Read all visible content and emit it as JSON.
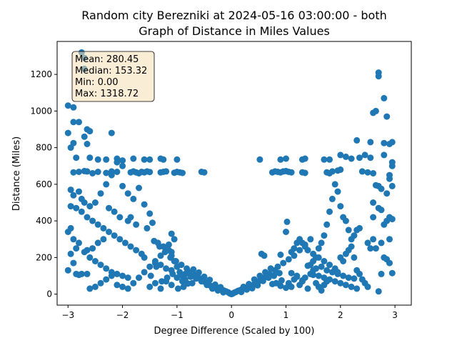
{
  "chart_data": {
    "type": "scatter",
    "title": "Random city Berezniki at 2024-05-16 03:00:00  - both",
    "subtitle": "Graph of Distance in Miles Values",
    "xlabel": "Degree Difference (Scaled by 100)",
    "ylabel": "Distance (Miles)",
    "xlim": [
      -3.2,
      3.3
    ],
    "ylim": [
      -60,
      1380
    ],
    "xticks": [
      -3,
      -2,
      -1,
      0,
      1,
      2,
      3
    ],
    "yticks": [
      0,
      200,
      400,
      600,
      800,
      1000,
      1200
    ],
    "grid": false,
    "marker_color": "#1f77b4",
    "stats_box": {
      "lines": [
        "Mean: 280.45",
        "Median: 153.32",
        "Min: 0.00",
        "Max: 1318.72"
      ],
      "placement": "top-left",
      "facecolor": "#f5deb3"
    },
    "points": [
      [
        0.0,
        0
      ],
      [
        0.02,
        3
      ],
      [
        -0.03,
        4
      ],
      [
        0.05,
        8
      ],
      [
        -0.06,
        10
      ],
      [
        0.08,
        12
      ],
      [
        -0.1,
        15
      ],
      [
        0.12,
        18
      ],
      [
        -0.14,
        20
      ],
      [
        0.16,
        22
      ],
      [
        -0.18,
        25
      ],
      [
        0.2,
        28
      ],
      [
        -0.22,
        30
      ],
      [
        0.25,
        32
      ],
      [
        -0.27,
        35
      ],
      [
        0.3,
        38
      ],
      [
        -0.32,
        40
      ],
      [
        0.35,
        42
      ],
      [
        -0.38,
        45
      ],
      [
        0.4,
        50
      ],
      [
        -0.42,
        55
      ],
      [
        0.45,
        60
      ],
      [
        -0.48,
        65
      ],
      [
        0.5,
        70
      ],
      [
        -0.52,
        75
      ],
      [
        0.55,
        80
      ],
      [
        -0.58,
        85
      ],
      [
        0.6,
        90
      ],
      [
        -0.62,
        95
      ],
      [
        0.65,
        100
      ],
      [
        -0.68,
        105
      ],
      [
        0.7,
        110
      ],
      [
        -0.72,
        60
      ],
      [
        0.75,
        55
      ],
      [
        -0.78,
        120
      ],
      [
        0.8,
        130
      ],
      [
        -0.82,
        140
      ],
      [
        0.85,
        150
      ],
      [
        -0.88,
        40
      ],
      [
        0.9,
        45
      ],
      [
        -0.92,
        160
      ],
      [
        0.95,
        170
      ],
      [
        -0.98,
        30
      ],
      [
        1.0,
        35
      ],
      [
        -1.02,
        180
      ],
      [
        1.05,
        190
      ],
      [
        -1.08,
        110
      ],
      [
        1.1,
        115
      ],
      [
        -1.12,
        200
      ],
      [
        1.15,
        210
      ],
      [
        -1.18,
        90
      ],
      [
        1.2,
        95
      ],
      [
        -1.22,
        230
      ],
      [
        1.25,
        240
      ],
      [
        -1.28,
        70
      ],
      [
        1.3,
        75
      ],
      [
        -1.32,
        260
      ],
      [
        1.35,
        270
      ],
      [
        -1.38,
        150
      ],
      [
        1.4,
        155
      ],
      [
        -1.42,
        290
      ],
      [
        1.45,
        300
      ],
      [
        -1.48,
        100
      ],
      [
        1.5,
        105
      ],
      [
        -0.15,
        10
      ],
      [
        0.18,
        12
      ],
      [
        -0.25,
        20
      ],
      [
        0.28,
        25
      ],
      [
        -0.35,
        30
      ],
      [
        0.38,
        32
      ],
      [
        -0.45,
        50
      ],
      [
        0.48,
        48
      ],
      [
        -0.55,
        70
      ],
      [
        0.58,
        72
      ],
      [
        -0.65,
        85
      ],
      [
        0.68,
        90
      ],
      [
        -0.75,
        95
      ],
      [
        0.78,
        100
      ],
      [
        -0.85,
        110
      ],
      [
        0.88,
        115
      ],
      [
        0.22,
        40
      ],
      [
        -0.2,
        38
      ],
      [
        0.32,
        55
      ],
      [
        -0.3,
        52
      ],
      [
        0.42,
        80
      ],
      [
        -0.4,
        78
      ],
      [
        0.52,
        100
      ],
      [
        -0.5,
        95
      ],
      [
        0.62,
        120
      ],
      [
        -0.6,
        118
      ],
      [
        0.72,
        140
      ],
      [
        -0.7,
        135
      ],
      [
        0.82,
        60
      ],
      [
        -0.8,
        58
      ],
      [
        0.92,
        75
      ],
      [
        -0.9,
        72
      ],
      [
        0.55,
        220
      ],
      [
        0.6,
        210
      ],
      [
        0.9,
        215
      ],
      [
        1.0,
        340
      ],
      [
        1.02,
        395
      ],
      [
        -1.1,
        330
      ],
      [
        -1.05,
        300
      ],
      [
        -1.15,
        270
      ],
      [
        0.52,
        735
      ],
      [
        0.9,
        735
      ],
      [
        1.0,
        740
      ],
      [
        1.3,
        735
      ],
      [
        1.35,
        740
      ],
      [
        1.7,
        735
      ],
      [
        1.8,
        735
      ],
      [
        2.0,
        760
      ],
      [
        2.1,
        750
      ],
      [
        2.2,
        740
      ],
      [
        2.35,
        745
      ],
      [
        2.45,
        760
      ],
      [
        2.55,
        745
      ],
      [
        -1.0,
        735
      ],
      [
        -1.25,
        735
      ],
      [
        -1.3,
        740
      ],
      [
        -1.5,
        735
      ],
      [
        -1.6,
        735
      ],
      [
        -1.8,
        740
      ],
      [
        -2.0,
        730
      ],
      [
        -2.1,
        740
      ],
      [
        -2.3,
        735
      ],
      [
        -2.45,
        735
      ],
      [
        -2.6,
        745
      ],
      [
        0.75,
        665
      ],
      [
        0.8,
        670
      ],
      [
        0.85,
        668
      ],
      [
        0.9,
        665
      ],
      [
        0.95,
        670
      ],
      [
        1.0,
        672
      ],
      [
        1.05,
        668
      ],
      [
        1.1,
        665
      ],
      [
        1.3,
        665
      ],
      [
        1.35,
        662
      ],
      [
        1.75,
        665
      ],
      [
        1.8,
        660
      ],
      [
        1.85,
        670
      ],
      [
        1.95,
        675
      ],
      [
        2.0,
        680
      ],
      [
        2.4,
        670
      ],
      [
        2.5,
        665
      ],
      [
        2.6,
        660
      ],
      [
        -0.5,
        665
      ],
      [
        -0.55,
        668
      ],
      [
        -0.9,
        662
      ],
      [
        -0.95,
        665
      ],
      [
        -1.0,
        668
      ],
      [
        -1.05,
        663
      ],
      [
        -1.2,
        670
      ],
      [
        -1.25,
        668
      ],
      [
        -1.3,
        665
      ],
      [
        -1.5,
        667
      ],
      [
        -1.55,
        670
      ],
      [
        -1.6,
        665
      ],
      [
        -1.65,
        668
      ],
      [
        -1.7,
        660
      ],
      [
        -1.75,
        665
      ],
      [
        -1.8,
        670
      ],
      [
        -1.85,
        665
      ],
      [
        -2.1,
        668
      ],
      [
        -2.2,
        670
      ],
      [
        -2.3,
        662
      ],
      [
        -2.45,
        668
      ],
      [
        -2.55,
        660
      ],
      [
        -2.65,
        670
      ],
      [
        -2.7,
        672
      ],
      [
        -2.8,
        668
      ],
      [
        -2.9,
        665
      ],
      [
        -2.0,
        700
      ],
      [
        -2.1,
        720
      ],
      [
        2.65,
        1000
      ],
      [
        2.6,
        990
      ],
      [
        2.7,
        1210
      ],
      [
        2.7,
        1190
      ],
      [
        2.8,
        1070
      ],
      [
        2.85,
        970
      ],
      [
        2.95,
        830
      ],
      [
        2.9,
        820
      ],
      [
        2.8,
        825
      ],
      [
        2.55,
        830
      ],
      [
        2.3,
        840
      ],
      [
        2.8,
        760
      ],
      [
        2.9,
        650
      ],
      [
        2.9,
        630
      ],
      [
        2.95,
        700
      ],
      [
        2.95,
        720
      ],
      [
        2.65,
        595
      ],
      [
        2.7,
        590
      ],
      [
        2.75,
        575
      ],
      [
        2.85,
        550
      ],
      [
        2.6,
        500
      ],
      [
        2.7,
        470
      ],
      [
        2.75,
        460
      ],
      [
        2.95,
        590
      ],
      [
        2.6,
        420
      ],
      [
        2.9,
        420
      ],
      [
        2.95,
        410
      ],
      [
        2.8,
        380
      ],
      [
        2.85,
        400
      ],
      [
        2.9,
        300
      ],
      [
        2.75,
        280
      ],
      [
        2.6,
        300
      ],
      [
        2.5,
        280
      ],
      [
        2.55,
        250
      ],
      [
        2.65,
        250
      ],
      [
        2.8,
        200
      ],
      [
        2.85,
        190
      ],
      [
        2.9,
        170
      ],
      [
        2.75,
        110
      ],
      [
        2.95,
        115
      ],
      [
        2.7,
        15
      ],
      [
        2.45,
        60
      ],
      [
        2.5,
        40
      ],
      [
        2.4,
        80
      ],
      [
        2.35,
        110
      ],
      [
        2.3,
        130
      ],
      [
        2.25,
        200
      ],
      [
        2.2,
        260
      ],
      [
        2.15,
        350
      ],
      [
        2.1,
        400
      ],
      [
        2.05,
        420
      ],
      [
        2.0,
        480
      ],
      [
        1.95,
        560
      ],
      [
        1.9,
        600
      ],
      [
        1.85,
        520
      ],
      [
        1.8,
        450
      ],
      [
        1.75,
        380
      ],
      [
        1.7,
        320
      ],
      [
        1.65,
        280
      ],
      [
        1.6,
        250
      ],
      [
        1.55,
        200
      ],
      [
        1.5,
        180
      ],
      [
        1.45,
        160
      ],
      [
        2.0,
        200
      ],
      [
        2.05,
        180
      ],
      [
        2.1,
        220
      ],
      [
        2.15,
        240
      ],
      [
        2.2,
        300
      ],
      [
        2.25,
        320
      ],
      [
        2.3,
        350
      ],
      [
        2.35,
        360
      ],
      [
        1.6,
        100
      ],
      [
        1.7,
        90
      ],
      [
        1.8,
        80
      ],
      [
        1.9,
        70
      ],
      [
        2.0,
        60
      ],
      [
        2.1,
        50
      ],
      [
        2.2,
        40
      ],
      [
        2.3,
        30
      ],
      [
        1.55,
        140
      ],
      [
        1.65,
        150
      ],
      [
        1.75,
        130
      ],
      [
        1.85,
        120
      ],
      [
        1.95,
        110
      ],
      [
        2.05,
        100
      ],
      [
        2.15,
        90
      ],
      [
        2.25,
        85
      ],
      [
        -2.75,
        1320
      ],
      [
        -2.7,
        1290
      ],
      [
        -2.7,
        1230
      ],
      [
        -3.0,
        1030
      ],
      [
        -2.9,
        1020
      ],
      [
        -2.9,
        940
      ],
      [
        -2.8,
        940
      ],
      [
        -2.65,
        900
      ],
      [
        -2.6,
        890
      ],
      [
        -2.7,
        860
      ],
      [
        -3.0,
        880
      ],
      [
        -2.2,
        880
      ],
      [
        -2.9,
        825
      ],
      [
        -2.95,
        800
      ],
      [
        -2.65,
        820
      ],
      [
        -2.85,
        745
      ],
      [
        -2.95,
        570
      ],
      [
        -2.9,
        540
      ],
      [
        -2.8,
        560
      ],
      [
        -2.75,
        520
      ],
      [
        -2.7,
        500
      ],
      [
        -2.6,
        480
      ],
      [
        -2.5,
        500
      ],
      [
        -2.4,
        550
      ],
      [
        -2.3,
        600
      ],
      [
        -2.2,
        650
      ],
      [
        -2.0,
        590
      ],
      [
        -1.9,
        550
      ],
      [
        -1.8,
        520
      ],
      [
        -1.7,
        580
      ],
      [
        -1.6,
        490
      ],
      [
        -1.5,
        440
      ],
      [
        -2.95,
        480
      ],
      [
        -2.85,
        470
      ],
      [
        -2.75,
        450
      ],
      [
        -2.65,
        420
      ],
      [
        -2.55,
        400
      ],
      [
        -2.45,
        380
      ],
      [
        -2.35,
        360
      ],
      [
        -2.25,
        340
      ],
      [
        -2.15,
        320
      ],
      [
        -2.05,
        300
      ],
      [
        -1.95,
        280
      ],
      [
        -1.85,
        260
      ],
      [
        -1.75,
        240
      ],
      [
        -1.65,
        220
      ],
      [
        -3.0,
        340
      ],
      [
        -2.95,
        360
      ],
      [
        -2.9,
        300
      ],
      [
        -2.85,
        250
      ],
      [
        -2.8,
        280
      ],
      [
        -2.7,
        230
      ],
      [
        -2.6,
        200
      ],
      [
        -2.5,
        180
      ],
      [
        -2.4,
        160
      ],
      [
        -2.3,
        140
      ],
      [
        -2.2,
        120
      ],
      [
        -2.1,
        110
      ],
      [
        -2.0,
        100
      ],
      [
        -1.9,
        90
      ],
      [
        -2.95,
        220
      ],
      [
        -2.9,
        170
      ],
      [
        -2.85,
        110
      ],
      [
        -2.8,
        105
      ],
      [
        -2.75,
        110
      ],
      [
        -3.0,
        130
      ],
      [
        -2.65,
        110
      ],
      [
        -2.6,
        30
      ],
      [
        -2.5,
        40
      ],
      [
        -2.4,
        60
      ],
      [
        -2.3,
        80
      ],
      [
        -2.2,
        100
      ],
      [
        -2.1,
        50
      ],
      [
        -2.0,
        40
      ],
      [
        -1.9,
        30
      ],
      [
        -1.8,
        60
      ],
      [
        -1.7,
        90
      ],
      [
        -1.6,
        120
      ],
      [
        -1.5,
        150
      ],
      [
        -1.4,
        180
      ],
      [
        -1.3,
        210
      ],
      [
        -1.2,
        240
      ],
      [
        -1.1,
        210
      ],
      [
        -1.05,
        180
      ],
      [
        -1.0,
        150
      ],
      [
        -0.95,
        120
      ],
      [
        -0.9,
        100
      ],
      [
        -0.85,
        80
      ],
      [
        -1.9,
        400
      ],
      [
        -1.85,
        420
      ],
      [
        -1.75,
        380
      ],
      [
        -1.55,
        360
      ],
      [
        -1.45,
        390
      ],
      [
        -1.35,
        280
      ],
      [
        -1.25,
        260
      ],
      [
        -1.15,
        240
      ],
      [
        -1.1,
        230
      ],
      [
        -2.05,
        420
      ],
      [
        -2.15,
        450
      ],
      [
        -2.25,
        470
      ],
      [
        -2.35,
        300
      ],
      [
        -2.45,
        280
      ],
      [
        -2.55,
        250
      ],
      [
        -2.65,
        240
      ],
      [
        -1.6,
        200
      ],
      [
        -1.4,
        170
      ],
      [
        -1.3,
        160
      ],
      [
        -1.2,
        140
      ],
      [
        -1.1,
        130
      ],
      [
        -1.5,
        40
      ],
      [
        -1.4,
        60
      ],
      [
        -1.3,
        30
      ],
      [
        -1.2,
        70
      ],
      [
        -1.1,
        50
      ],
      [
        -1.0,
        90
      ],
      [
        -0.9,
        70
      ],
      [
        1.1,
        230
      ],
      [
        1.15,
        250
      ],
      [
        1.2,
        280
      ],
      [
        1.25,
        300
      ],
      [
        1.3,
        280
      ],
      [
        1.35,
        260
      ],
      [
        1.4,
        240
      ],
      [
        1.5,
        220
      ],
      [
        1.6,
        200
      ],
      [
        1.7,
        180
      ],
      [
        1.8,
        160
      ],
      [
        1.9,
        140
      ],
      [
        1.95,
        120
      ],
      [
        1.05,
        60
      ],
      [
        1.1,
        40
      ],
      [
        1.15,
        80
      ],
      [
        1.2,
        100
      ],
      [
        1.25,
        50
      ],
      [
        1.3,
        70
      ],
      [
        1.35,
        90
      ],
      [
        1.4,
        30
      ],
      [
        1.45,
        110
      ],
      [
        1.5,
        130
      ],
      [
        1.55,
        60
      ],
      [
        1.6,
        40
      ],
      [
        1.65,
        20
      ],
      [
        1.7,
        50
      ],
      [
        1.75,
        70
      ]
    ]
  }
}
